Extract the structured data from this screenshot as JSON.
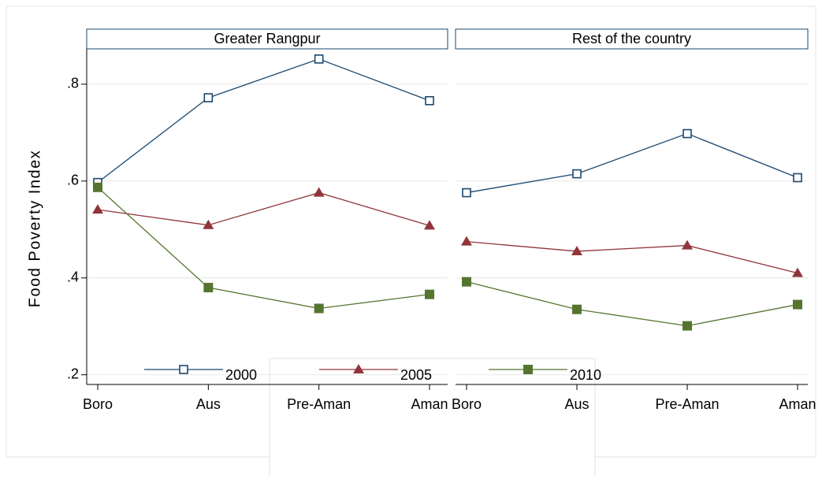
{
  "chart_data": {
    "type": "line",
    "y_label": "Food Poverty Index",
    "categories": [
      "Boro",
      "Aus",
      "Pre-Aman",
      "Aman"
    ],
    "ylim": [
      0.18,
      0.873
    ],
    "yticks": [
      {
        "value": 0.2,
        "label": ".2"
      },
      {
        "value": 0.4,
        "label": ".4"
      },
      {
        "value": 0.6,
        "label": ".6"
      },
      {
        "value": 0.8,
        "label": ".8"
      }
    ],
    "grid": true,
    "series": [
      {
        "name": "2000",
        "color": "#1a476f",
        "marker": "hollow-square"
      },
      {
        "name": "2005",
        "color": "#90353b",
        "marker": "triangle"
      },
      {
        "name": "2010",
        "color": "#55752f",
        "marker": "square"
      }
    ],
    "panels": [
      {
        "title": "Greater Rangpur",
        "series": [
          {
            "values": [
              0.597,
              0.772,
              0.852,
              0.766
            ]
          },
          {
            "values": [
              0.541,
              0.509,
              0.576,
              0.508
            ]
          },
          {
            "values": [
              0.587,
              0.38,
              0.337,
              0.366
            ]
          }
        ]
      },
      {
        "title": "Rest of the country",
        "series": [
          {
            "values": [
              0.576,
              0.615,
              0.698,
              0.607
            ]
          },
          {
            "values": [
              0.475,
              0.455,
              0.467,
              0.41
            ]
          },
          {
            "values": [
              0.392,
              0.335,
              0.301,
              0.345
            ]
          }
        ]
      }
    ]
  }
}
